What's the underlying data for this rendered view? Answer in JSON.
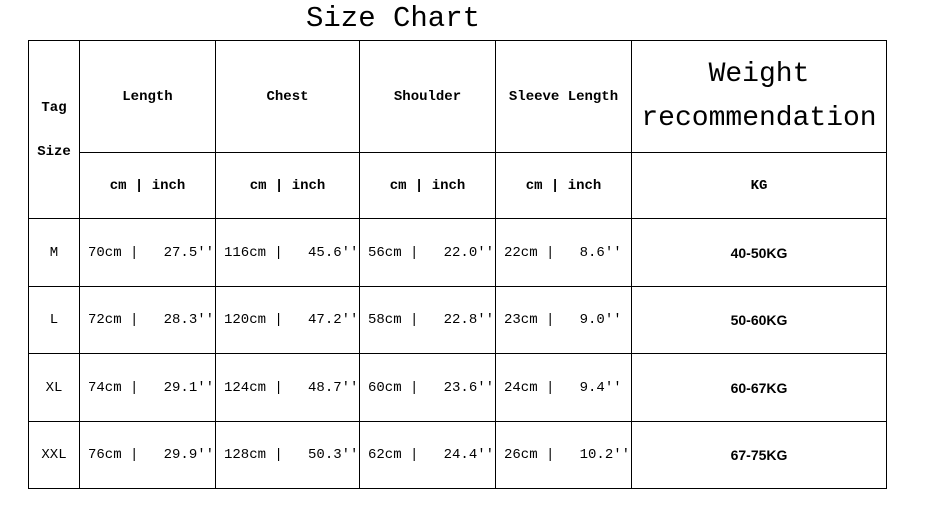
{
  "title": "Size Chart",
  "headers": {
    "tag_size_line1": "Tag",
    "tag_size_line2": "Size",
    "columns": [
      "Length",
      "Chest",
      "Shoulder",
      "Sleeve Length"
    ],
    "weight_line1": "Weight",
    "weight_line2": "recommendation",
    "unit_label": "cm | inch",
    "weight_unit": "KG"
  },
  "rows": [
    {
      "size": "M",
      "cells": [
        "70cm |   27.5''",
        "116cm |   45.6''",
        "56cm |   22.0''",
        "22cm |   8.6''"
      ],
      "weight": "40-50KG"
    },
    {
      "size": "L",
      "cells": [
        "72cm |   28.3''",
        "120cm |   47.2''",
        "58cm |   22.8''",
        "23cm |   9.0''"
      ],
      "weight": "50-60KG"
    },
    {
      "size": "XL",
      "cells": [
        "74cm |   29.1''",
        "124cm |   48.7''",
        "60cm |   23.6''",
        "24cm |   9.4''"
      ],
      "weight": "60-67KG"
    },
    {
      "size": "XXL",
      "cells": [
        "76cm |   29.9''",
        "128cm |   50.3''",
        "62cm |   24.4''",
        "26cm |   10.2''"
      ],
      "weight": "67-75KG"
    }
  ]
}
